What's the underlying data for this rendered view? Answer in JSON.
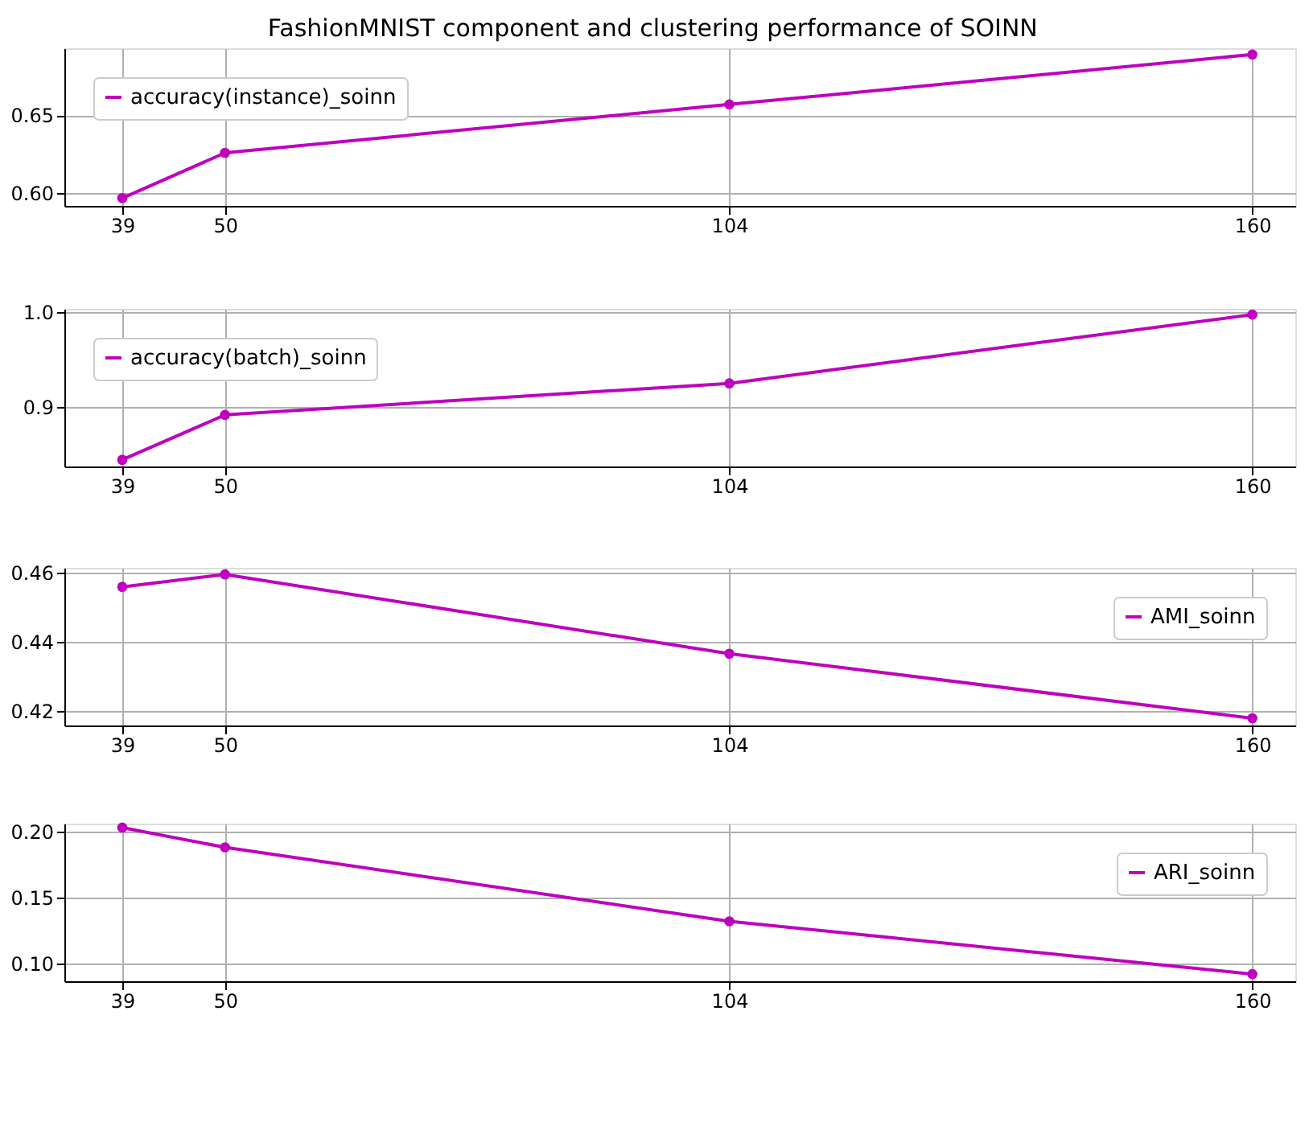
{
  "chart_data": [
    {
      "type": "line",
      "title": "FashionMNIST component and clustering performance of SOINN",
      "x": [
        39,
        50,
        104,
        160
      ],
      "series": [
        {
          "name": "accuracy(instance)_soinn",
          "color": "#bf00bf",
          "values": [
            0.597,
            0.626,
            0.657,
            0.689
          ]
        }
      ],
      "xlim": [
        32.8,
        164.6
      ],
      "xticks": [
        39,
        50,
        104,
        160
      ],
      "ylim": [
        0.592,
        0.693
      ],
      "yticks": [
        {
          "value": 0.6,
          "label": "0.60"
        },
        0.65
      ],
      "grid": true,
      "legend": "top left",
      "marker": "circle",
      "line_style": "solid"
    },
    {
      "type": "line",
      "x": [
        39,
        50,
        104,
        160
      ],
      "series": [
        {
          "name": "accuracy(batch)_soinn",
          "color": "#bf00bf",
          "values": [
            0.845,
            0.892,
            0.925,
            0.997
          ]
        }
      ],
      "xlim": [
        32.8,
        164.6
      ],
      "xticks": [
        39,
        50,
        104,
        160
      ],
      "ylim": [
        0.838,
        1.003
      ],
      "yticks": [
        {
          "value": 0.9,
          "label": "0.9"
        },
        {
          "value": 1.0,
          "label": "1.0"
        }
      ],
      "grid": true,
      "legend": "top left",
      "marker": "circle",
      "line_style": "solid"
    },
    {
      "type": "line",
      "x": [
        39,
        50,
        104,
        160
      ],
      "series": [
        {
          "name": "AMI_soinn",
          "color": "#bf00bf",
          "values": [
            0.4559,
            0.4595,
            0.4366,
            0.418
          ]
        }
      ],
      "xlim": [
        32.8,
        164.6
      ],
      "xticks": [
        39,
        50,
        104,
        160
      ],
      "ylim": [
        0.4159,
        0.4614
      ],
      "yticks": [
        0.42,
        0.44,
        0.46
      ],
      "grid": true,
      "legend": "top right",
      "marker": "circle",
      "line_style": "solid"
    },
    {
      "type": "line",
      "x": [
        39,
        50,
        104,
        160
      ],
      "series": [
        {
          "name": "ARI_soinn",
          "color": "#bf00bf",
          "values": [
            0.203,
            0.188,
            0.132,
            0.092
          ]
        }
      ],
      "xlim": [
        32.8,
        164.6
      ],
      "xticks": [
        39,
        50,
        104,
        160
      ],
      "ylim": [
        0.0866,
        0.206
      ],
      "yticks": [
        {
          "value": 0.1,
          "label": "0.10"
        },
        0.15,
        {
          "value": 0.2,
          "label": "0.20"
        }
      ],
      "grid": true,
      "legend": "top right",
      "marker": "circle",
      "line_style": "solid"
    }
  ]
}
